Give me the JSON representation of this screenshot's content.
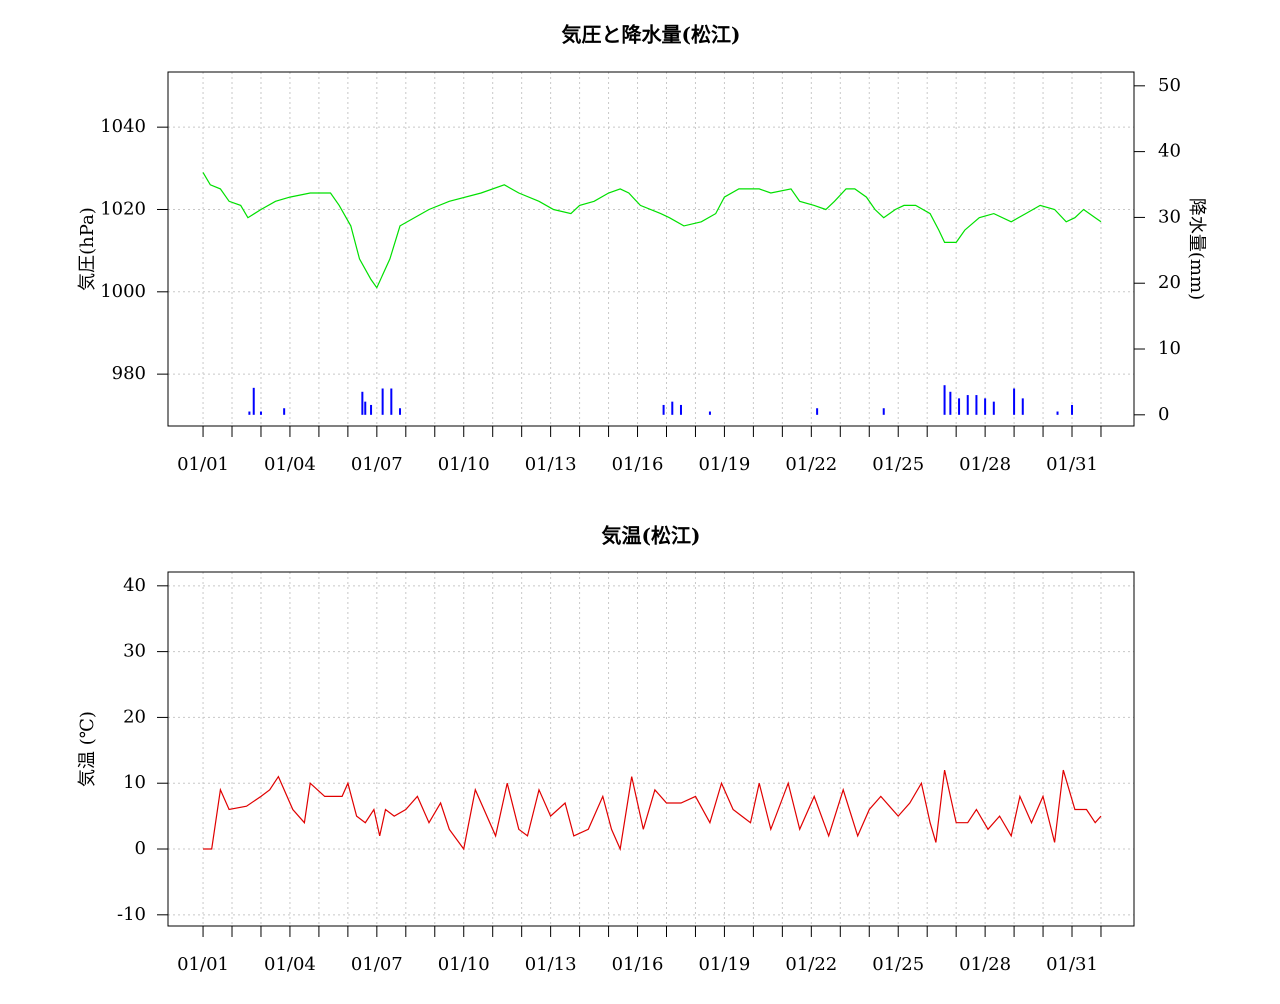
{
  "chart_data": [
    {
      "type": "combo",
      "title": "気圧と降水量(松江)",
      "ylabel": "気圧(hPa)",
      "y2label": "降水量(mm)",
      "grid": true,
      "xlim": [
        -1.21,
        32.14
      ],
      "xticks": [
        {
          "value": 0,
          "label": "01/01"
        },
        {
          "value": 3,
          "label": "01/04"
        },
        {
          "value": 6,
          "label": "01/07"
        },
        {
          "value": 9,
          "label": "01/10"
        },
        {
          "value": 12,
          "label": "01/13"
        },
        {
          "value": 15,
          "label": "01/16"
        },
        {
          "value": 18,
          "label": "01/19"
        },
        {
          "value": 21,
          "label": "01/22"
        },
        {
          "value": 24,
          "label": "01/25"
        },
        {
          "value": 27,
          "label": "01/28"
        },
        {
          "value": 30,
          "label": "01/31"
        }
      ],
      "xminorticks": [
        1,
        2,
        4,
        5,
        7,
        8,
        10,
        11,
        13,
        14,
        16,
        17,
        19,
        20,
        22,
        23,
        25,
        26,
        28,
        29,
        31
      ],
      "ylim": [
        967.4,
        1053.4
      ],
      "yticks": [
        980,
        1000,
        1020,
        1040
      ],
      "y2lim": [
        -1.7,
        52.1
      ],
      "y2ticks": [
        0,
        10,
        20,
        30,
        40,
        50
      ],
      "series": [
        {
          "type": "line",
          "color": "#00e000",
          "x": [
            0,
            0.25,
            0.6,
            0.9,
            1.3,
            1.55,
            2,
            2.5,
            3,
            3.7,
            4.4,
            4.7,
            5.1,
            5.4,
            5.8,
            6.0,
            6.45,
            6.8,
            7.8,
            8.5,
            9.6,
            10.4,
            10.9,
            11.6,
            12.1,
            12.7,
            13,
            13.5,
            14,
            14.4,
            14.7,
            15.1,
            15.8,
            16.1,
            16.6,
            17.2,
            17.7,
            18,
            18.5,
            19.2,
            19.6,
            20.3,
            20.6,
            21.1,
            21.5,
            21.8,
            22.2,
            22.5,
            22.9,
            23.2,
            23.5,
            23.9,
            24.2,
            24.6,
            25.1,
            25.4,
            25.6,
            26,
            26.3,
            26.8,
            27.3,
            27.9,
            28.4,
            28.9,
            29.4,
            29.8,
            30.1,
            30.4,
            30.8,
            31
          ],
          "values": [
            1029,
            1026,
            1025,
            1022,
            1021,
            1018,
            1020,
            1022,
            1023,
            1024,
            1024,
            1021,
            1016,
            1008,
            1003,
            1001,
            1008,
            1016,
            1020,
            1022,
            1024,
            1026,
            1024,
            1022,
            1020,
            1019,
            1021,
            1022,
            1024,
            1025,
            1024,
            1021,
            1019,
            1018,
            1016,
            1017,
            1019,
            1023,
            1025,
            1025,
            1024,
            1025,
            1022,
            1021,
            1020,
            1022,
            1025,
            1025,
            1023,
            1020,
            1018,
            1020,
            1021,
            1021,
            1019,
            1015,
            1012,
            1012,
            1015,
            1018,
            1019,
            1017,
            1019,
            1021,
            1020,
            1017,
            1018,
            1020,
            1018,
            1017
          ]
        },
        {
          "type": "bar",
          "axis": "y2",
          "color": "#0000ff",
          "x": [
            1.6,
            1.75,
            2.0,
            2.8,
            5.5,
            5.6,
            5.8,
            6.2,
            6.5,
            6.8,
            15.9,
            16.2,
            16.5,
            17.5,
            21.2,
            23.5,
            25.6,
            25.8,
            26.1,
            26.4,
            26.7,
            27.0,
            27.3,
            28.0,
            28.3,
            29.5,
            30.0
          ],
          "values": [
            0.5,
            4.1,
            0.5,
            1,
            3.5,
            2,
            1.5,
            4,
            4,
            1,
            1.5,
            2,
            1.5,
            0.5,
            1,
            1,
            4.5,
            3.5,
            2.5,
            3,
            3,
            2.5,
            2,
            4,
            2.5,
            0.5,
            1.5
          ]
        }
      ]
    },
    {
      "type": "line",
      "title": "気温(松江)",
      "ylabel": "気温 (℃)",
      "grid": true,
      "xlim": [
        -1.21,
        32.14
      ],
      "xticks": [
        {
          "value": 0,
          "label": "01/01"
        },
        {
          "value": 3,
          "label": "01/04"
        },
        {
          "value": 6,
          "label": "01/07"
        },
        {
          "value": 9,
          "label": "01/10"
        },
        {
          "value": 12,
          "label": "01/13"
        },
        {
          "value": 15,
          "label": "01/16"
        },
        {
          "value": 18,
          "label": "01/19"
        },
        {
          "value": 21,
          "label": "01/22"
        },
        {
          "value": 24,
          "label": "01/25"
        },
        {
          "value": 27,
          "label": "01/28"
        },
        {
          "value": 30,
          "label": "01/31"
        }
      ],
      "xminorticks": [
        1,
        2,
        4,
        5,
        7,
        8,
        10,
        11,
        13,
        14,
        16,
        17,
        19,
        20,
        22,
        23,
        25,
        26,
        28,
        29,
        31
      ],
      "ylim": [
        -11.7,
        42.1
      ],
      "yticks": [
        -10,
        0,
        10,
        20,
        30,
        40
      ],
      "series": [
        {
          "type": "line",
          "color": "#e00000",
          "x": [
            0,
            0.3,
            0.6,
            0.9,
            1.5,
            2,
            2.3,
            2.6,
            3.1,
            3.5,
            3.7,
            4.2,
            4.8,
            5,
            5.3,
            5.6,
            5.9,
            6.1,
            6.3,
            6.6,
            7,
            7.4,
            7.8,
            8.2,
            8.5,
            9,
            9.4,
            9.7,
            10.1,
            10.5,
            10.9,
            11.2,
            11.6,
            12,
            12.5,
            12.8,
            13.3,
            13.8,
            14.1,
            14.4,
            14.8,
            15.2,
            15.6,
            16,
            16.5,
            17,
            17.5,
            17.9,
            18.3,
            18.6,
            18.9,
            19.2,
            19.6,
            20.2,
            20.6,
            21.1,
            21.6,
            22.1,
            22.6,
            23,
            23.4,
            24,
            24.4,
            24.8,
            25.1,
            25.3,
            25.6,
            26,
            26.4,
            26.7,
            27.1,
            27.5,
            27.9,
            28.2,
            28.6,
            29,
            29.4,
            29.7,
            30.1,
            30.5,
            30.8,
            31
          ],
          "values": [
            0,
            0,
            9,
            6,
            6.5,
            8,
            9,
            11,
            6,
            4,
            10,
            8,
            8,
            10,
            5,
            4,
            6,
            2,
            6,
            5,
            6,
            8,
            4,
            7,
            3,
            0,
            9,
            6,
            2,
            10,
            3,
            2,
            9,
            5,
            7,
            2,
            3,
            8,
            3,
            0,
            11,
            3,
            9,
            7,
            7,
            8,
            4,
            10,
            6,
            5,
            4,
            10,
            3,
            10,
            3,
            8,
            2,
            9,
            2,
            6,
            8,
            5,
            7,
            10,
            4,
            1,
            12,
            4,
            4,
            6,
            3,
            5,
            2,
            8,
            4,
            8,
            1,
            12,
            6,
            6,
            4,
            5
          ]
        }
      ]
    }
  ]
}
